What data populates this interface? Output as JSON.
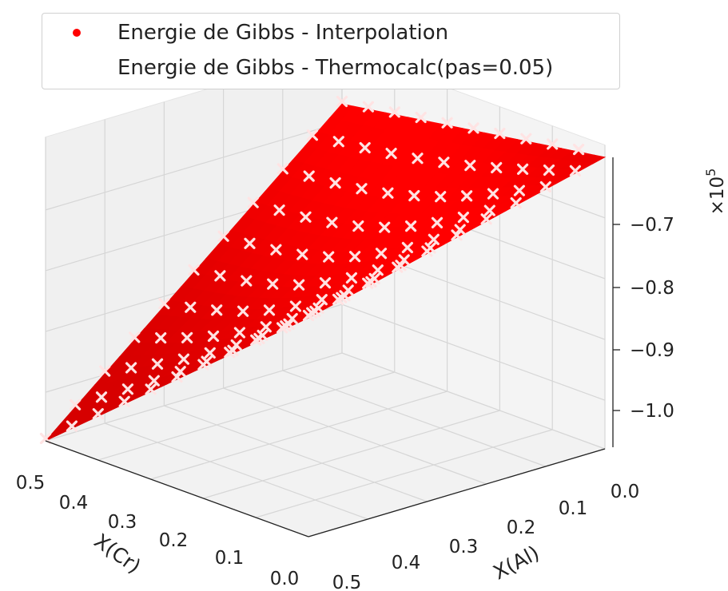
{
  "chart_data": {
    "type": "surface3d",
    "legend": {
      "placement": "top-center",
      "entries": [
        {
          "label": "Energie de Gibbs - Interpolation",
          "marker": "red dot",
          "color": "#ff0000"
        },
        {
          "label": "Energie de Gibbs - Thermocalc(pas=0.05)",
          "marker": "white x",
          "color": "#ffffff"
        }
      ]
    },
    "x_axis": {
      "label": "X(Al)",
      "ticks": [
        "0.0",
        "0.1",
        "0.2",
        "0.3",
        "0.4",
        "0.5"
      ],
      "range": [
        0,
        0.5
      ]
    },
    "y_axis": {
      "label": "X(Cr)",
      "ticks": [
        "0.5",
        "0.4",
        "0.3",
        "0.2",
        "0.1",
        "0.0"
      ],
      "range": [
        0,
        0.5
      ]
    },
    "z_axis": {
      "ticks": [
        "−1.0",
        "−0.9",
        "−0.8",
        "−0.7"
      ],
      "range": [
        -1.08,
        -0.62
      ]
    },
    "z_offset_label": "×10",
    "z_offset_exponent": "5",
    "corner_values": {
      "al0_cr0": -0.6,
      "al0_cr05": -0.67,
      "al05_cr0": -0.72,
      "al05_cr05": -1.08
    },
    "grid": true,
    "surface_color": "#ff0000",
    "scatter_color": "#ffffff",
    "scatter_step": 0.05
  }
}
